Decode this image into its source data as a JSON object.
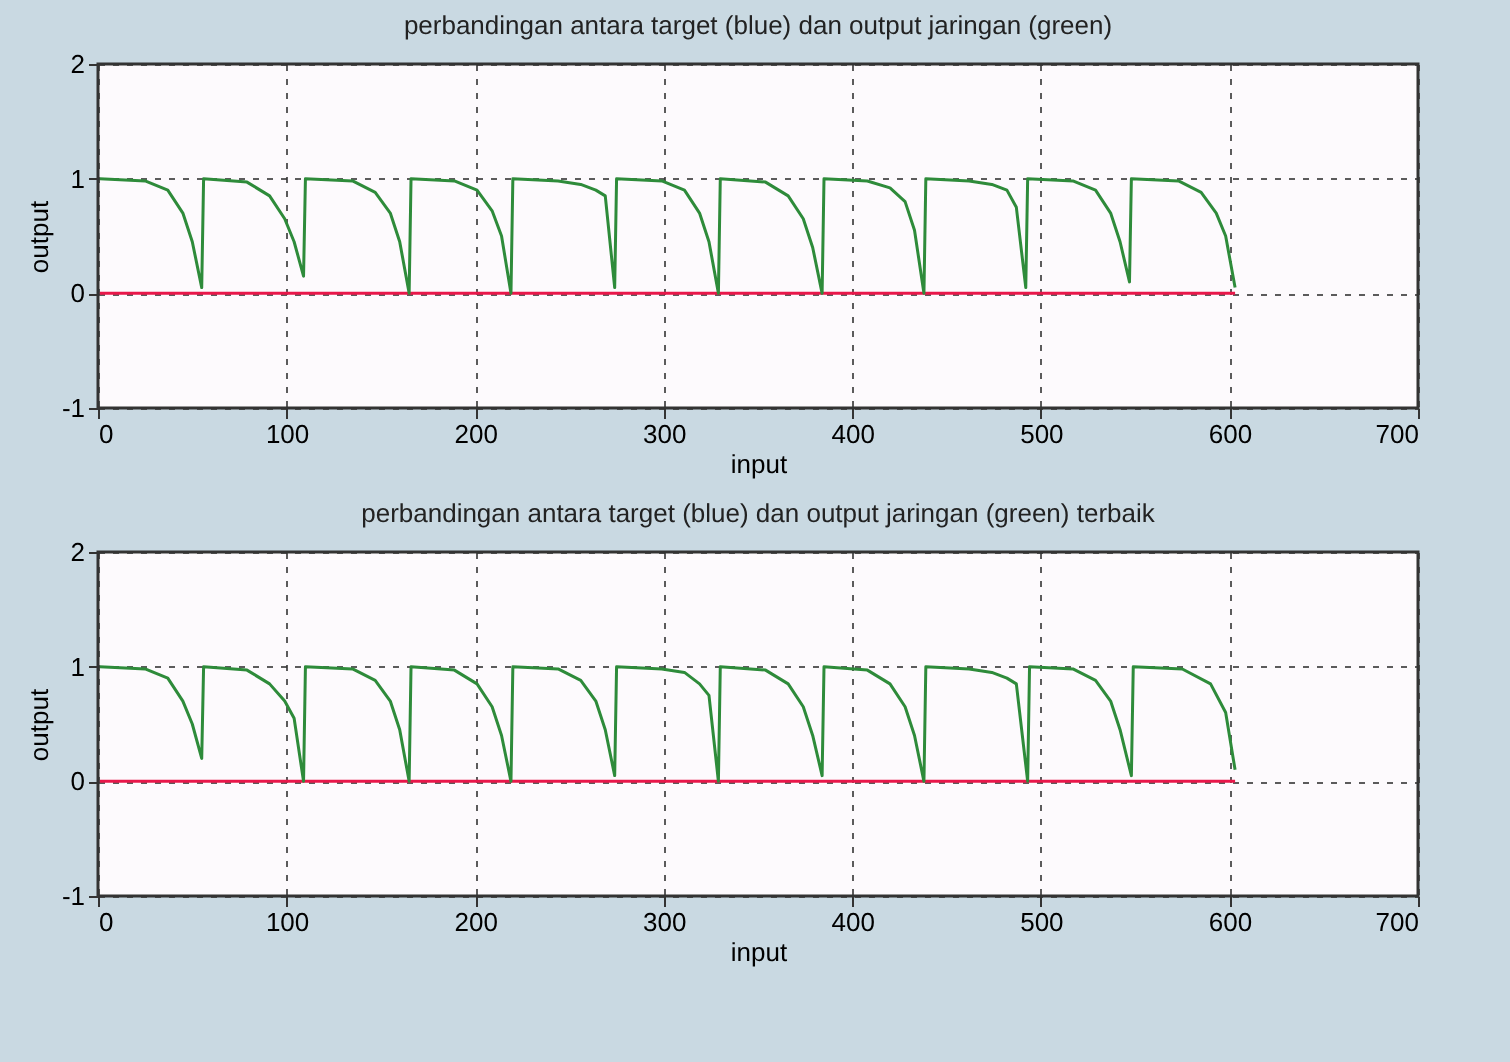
{
  "chart_data": [
    {
      "type": "line",
      "title": "perbandingan antara target (blue) dan output jaringan (green)",
      "xlabel": "input",
      "ylabel": "output",
      "xlim": [
        0,
        700
      ],
      "xticks": [
        0,
        100,
        200,
        300,
        400,
        500,
        600,
        700
      ],
      "ylim": [
        -1,
        2
      ],
      "yticks": [
        -1,
        0,
        1,
        2
      ],
      "grid": true,
      "series": [
        {
          "color": "#e8174a",
          "x": [
            1,
            603
          ],
          "values": [
            0,
            0
          ]
        },
        {
          "color": "#2e8b3a",
          "x": [
            1,
            25,
            37,
            45,
            50,
            55,
            56,
            79,
            91,
            99,
            104,
            109,
            110,
            135,
            147,
            155,
            160,
            165,
            166,
            189,
            201,
            209,
            214,
            219,
            220,
            244,
            256,
            264,
            269,
            274,
            275,
            299,
            311,
            319,
            324,
            329,
            330,
            354,
            366,
            374,
            379,
            384,
            385,
            408,
            420,
            428,
            433,
            438,
            439,
            462,
            474,
            482,
            487,
            492,
            493,
            517,
            529,
            537,
            542,
            547,
            548,
            573,
            585,
            593,
            598,
            603
          ],
          "values": [
            1,
            0.98,
            0.9,
            0.7,
            0.45,
            0.05,
            1,
            0.97,
            0.85,
            0.65,
            0.45,
            0.15,
            1,
            0.98,
            0.88,
            0.7,
            0.45,
            0,
            1,
            0.98,
            0.9,
            0.72,
            0.5,
            0,
            1,
            0.98,
            0.95,
            0.9,
            0.85,
            0.05,
            1,
            0.98,
            0.9,
            0.7,
            0.45,
            0,
            1,
            0.97,
            0.85,
            0.65,
            0.4,
            0,
            1,
            0.98,
            0.92,
            0.8,
            0.55,
            0,
            1,
            0.98,
            0.95,
            0.9,
            0.75,
            0.05,
            1,
            0.98,
            0.9,
            0.7,
            0.45,
            0.1,
            1,
            0.98,
            0.88,
            0.7,
            0.5,
            0.05
          ]
        }
      ]
    },
    {
      "type": "line",
      "title": "perbandingan antara target (blue) dan output jaringan (green) terbaik",
      "xlabel": "input",
      "ylabel": "output",
      "xlim": [
        0,
        700
      ],
      "xticks": [
        0,
        100,
        200,
        300,
        400,
        500,
        600,
        700
      ],
      "ylim": [
        -1,
        2
      ],
      "yticks": [
        -1,
        0,
        1,
        2
      ],
      "grid": true,
      "series": [
        {
          "color": "#e8174a",
          "x": [
            1,
            603
          ],
          "values": [
            0,
            0
          ]
        },
        {
          "color": "#2e8b3a",
          "x": [
            1,
            25,
            37,
            45,
            50,
            55,
            56,
            79,
            91,
            99,
            104,
            109,
            110,
            135,
            147,
            155,
            160,
            165,
            166,
            189,
            201,
            209,
            214,
            219,
            220,
            244,
            256,
            264,
            269,
            274,
            275,
            299,
            311,
            319,
            324,
            329,
            330,
            354,
            366,
            374,
            379,
            384,
            385,
            408,
            420,
            428,
            433,
            438,
            439,
            462,
            474,
            482,
            487,
            493,
            494,
            517,
            529,
            537,
            542,
            548,
            549,
            575,
            590,
            598,
            603
          ],
          "values": [
            1,
            0.98,
            0.9,
            0.7,
            0.5,
            0.2,
            1,
            0.97,
            0.85,
            0.7,
            0.55,
            0,
            1,
            0.98,
            0.88,
            0.7,
            0.45,
            0,
            1,
            0.97,
            0.85,
            0.65,
            0.4,
            0,
            1,
            0.98,
            0.88,
            0.7,
            0.45,
            0.05,
            1,
            0.98,
            0.95,
            0.85,
            0.75,
            0,
            1,
            0.97,
            0.85,
            0.65,
            0.4,
            0.05,
            1,
            0.97,
            0.85,
            0.65,
            0.4,
            0,
            1,
            0.98,
            0.95,
            0.9,
            0.85,
            0,
            1,
            0.98,
            0.88,
            0.7,
            0.45,
            0.05,
            1,
            0.98,
            0.85,
            0.6,
            0.1
          ]
        }
      ]
    }
  ]
}
